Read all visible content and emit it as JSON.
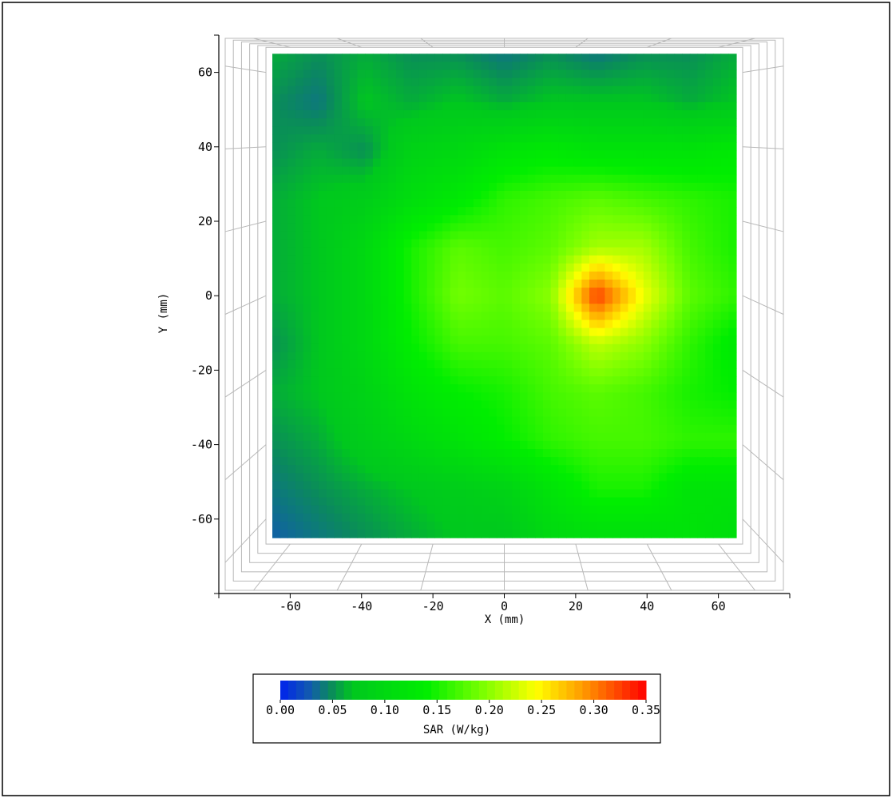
{
  "chart_data": {
    "type": "heatmap",
    "title": "",
    "xlabel": "X (mm)",
    "ylabel": "Y (mm)",
    "xlim": [
      -80,
      80
    ],
    "ylim": [
      -80,
      70
    ],
    "grid": true,
    "x_ticks": [
      -60,
      -40,
      -20,
      0,
      20,
      40,
      60
    ],
    "y_ticks": [
      60,
      40,
      20,
      0,
      -20,
      -40,
      -60
    ],
    "data_extent": {
      "x": [
        -65,
        65
      ],
      "y": [
        -65,
        65
      ]
    },
    "x": [
      -65,
      -52,
      -39,
      -26,
      -13,
      0,
      13,
      26,
      39,
      52,
      65
    ],
    "y": [
      65,
      52,
      39,
      26,
      13,
      0,
      -13,
      -26,
      -39,
      -52,
      -65
    ],
    "z": [
      [
        0.06,
        0.05,
        0.06,
        0.05,
        0.05,
        0.04,
        0.05,
        0.04,
        0.05,
        0.05,
        0.06
      ],
      [
        0.05,
        0.04,
        0.07,
        0.06,
        0.07,
        0.06,
        0.07,
        0.07,
        0.07,
        0.06,
        0.07
      ],
      [
        0.05,
        0.06,
        0.05,
        0.09,
        0.1,
        0.12,
        0.13,
        0.12,
        0.12,
        0.12,
        0.13
      ],
      [
        0.06,
        0.07,
        0.08,
        0.11,
        0.13,
        0.16,
        0.17,
        0.18,
        0.17,
        0.16,
        0.15
      ],
      [
        0.06,
        0.07,
        0.1,
        0.15,
        0.18,
        0.17,
        0.18,
        0.21,
        0.21,
        0.17,
        0.15
      ],
      [
        0.06,
        0.07,
        0.1,
        0.15,
        0.19,
        0.18,
        0.2,
        0.33,
        0.24,
        0.18,
        0.16
      ],
      [
        0.05,
        0.07,
        0.1,
        0.14,
        0.17,
        0.17,
        0.18,
        0.22,
        0.2,
        0.16,
        0.13
      ],
      [
        0.06,
        0.07,
        0.09,
        0.12,
        0.14,
        0.15,
        0.17,
        0.18,
        0.17,
        0.15,
        0.14
      ],
      [
        0.05,
        0.06,
        0.08,
        0.1,
        0.12,
        0.14,
        0.16,
        0.17,
        0.17,
        0.16,
        0.16
      ],
      [
        0.04,
        0.05,
        0.06,
        0.07,
        0.08,
        0.09,
        0.12,
        0.15,
        0.15,
        0.12,
        0.12
      ],
      [
        0.03,
        0.04,
        0.05,
        0.06,
        0.07,
        0.07,
        0.1,
        0.11,
        0.11,
        0.12,
        0.11
      ]
    ],
    "colorbar": {
      "label": "SAR (W/kg)",
      "min": 0.0,
      "max": 0.35,
      "tick_labels": [
        "0.00",
        "0.05",
        "0.10",
        "0.15",
        "0.20",
        "0.25",
        "0.30",
        "0.35"
      ],
      "legend_placement": "bottom-center"
    },
    "colors": {
      "low": "#0022ee",
      "mid_low": "#0a8c5a",
      "mid": "#00ee00",
      "mid_high": "#ffff00",
      "high": "#ff0000"
    }
  }
}
